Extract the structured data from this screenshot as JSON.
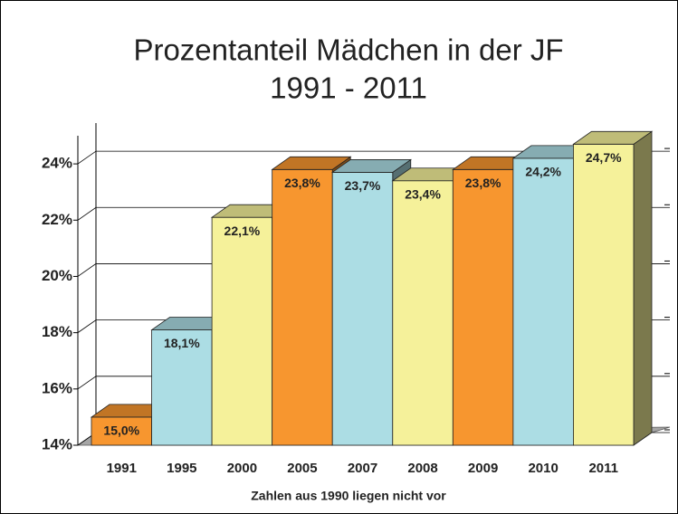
{
  "chart_data": {
    "type": "bar3d",
    "title": "Prozentanteil Mädchen in der JF",
    "subtitle": "1991 - 2011",
    "xlabel": "Zahlen aus 1990 liegen nicht vor",
    "categories": [
      "1991",
      "1995",
      "2000",
      "2005",
      "2007",
      "2008",
      "2009",
      "2010",
      "2011"
    ],
    "values": [
      15.0,
      18.1,
      22.1,
      23.8,
      23.7,
      23.4,
      23.8,
      24.2,
      24.7
    ],
    "value_labels": [
      "15,0%",
      "18,1%",
      "22,1%",
      "23,8%",
      "23,7%",
      "23,4%",
      "23,8%",
      "24,2%",
      "24,7%"
    ],
    "colors": [
      "#f7962f",
      "#acdde4",
      "#f5f19a",
      "#f7962f",
      "#acdde4",
      "#f5f19a",
      "#f7962f",
      "#acdde4",
      "#f5f19a"
    ],
    "ylim": [
      14,
      25
    ],
    "yticks": [
      {
        "value": 14,
        "label": "14%"
      },
      {
        "value": 16,
        "label": "16%"
      },
      {
        "value": 18,
        "label": "18%"
      },
      {
        "value": 20,
        "label": "20%"
      },
      {
        "value": 22,
        "label": "22%"
      },
      {
        "value": 24,
        "label": "24%"
      }
    ],
    "grid": true
  }
}
